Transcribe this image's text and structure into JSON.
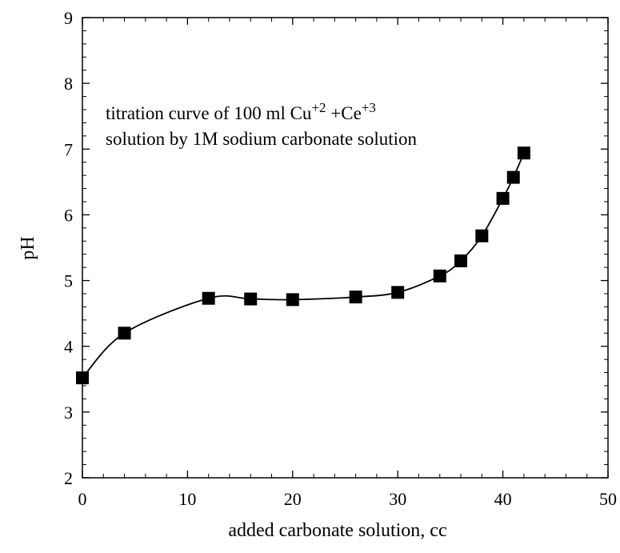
{
  "chart_data": {
    "type": "line",
    "title": "",
    "annotation": {
      "line1_prefix": "titration curve of 100 ml Cu",
      "line1_sup1": "+2",
      "line1_mid": " +Ce",
      "line1_sup2": "+3",
      "line2": "solution by 1M sodium carbonate solution"
    },
    "xlabel": "added carbonate solution, cc",
    "ylabel": "pH",
    "xlim": [
      0,
      50
    ],
    "ylim": [
      2,
      9
    ],
    "xticks": [
      0,
      10,
      20,
      30,
      40,
      50
    ],
    "yticks": [
      2,
      3,
      4,
      5,
      6,
      7,
      8,
      9
    ],
    "grid": false,
    "legend": "none",
    "series": [
      {
        "marker": "square",
        "color": "#000000",
        "x": [
          0,
          4,
          12,
          16,
          20,
          26,
          30,
          34,
          36,
          38,
          40,
          41,
          42
        ],
        "y": [
          3.52,
          4.2,
          4.73,
          4.72,
          4.71,
          4.75,
          4.82,
          5.07,
          5.3,
          5.68,
          6.25,
          6.57,
          6.94
        ]
      }
    ]
  }
}
